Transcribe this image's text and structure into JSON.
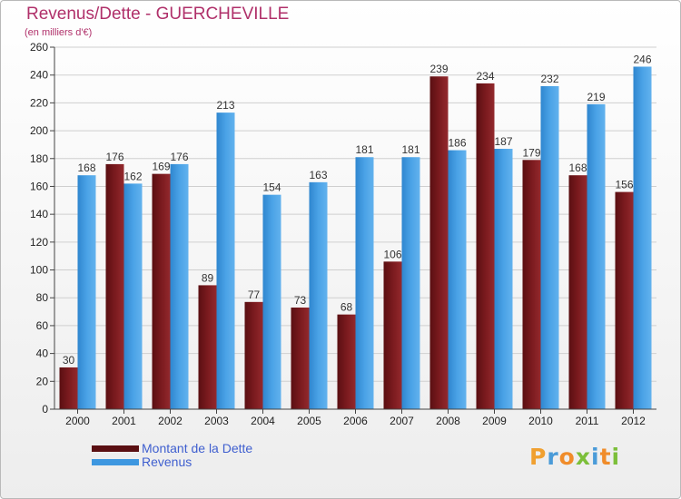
{
  "page": {
    "title": "Revenus/Dette - GUERCHEVILLE",
    "subtitle": "(en milliers d'€)",
    "logo": {
      "text": "Proxiti"
    }
  },
  "colors": {
    "debt": "#8a1e22",
    "revenue": "#4aa0e4",
    "title": "#b0306a",
    "legend_text": "#3f5fcf",
    "grid": "#cfcfcf"
  },
  "legend": [
    {
      "label": "Montant de la Dette",
      "color": "#5a0f12"
    },
    {
      "label": "Revenus",
      "color": "#3d97e0"
    }
  ],
  "chart_data": {
    "type": "bar",
    "title": "Revenus/Dette - GUERCHEVILLE",
    "subtitle": "(en milliers d'€)",
    "xlabel": "",
    "ylabel": "",
    "categories": [
      "2000",
      "2001",
      "2002",
      "2003",
      "2004",
      "2005",
      "2006",
      "2007",
      "2008",
      "2009",
      "2010",
      "2011",
      "2012"
    ],
    "series": [
      {
        "name": "Montant de la Dette",
        "values": [
          30,
          176,
          169,
          89,
          77,
          73,
          68,
          106,
          239,
          234,
          179,
          168,
          156
        ]
      },
      {
        "name": "Revenus",
        "values": [
          168,
          162,
          176,
          213,
          154,
          163,
          181,
          181,
          186,
          187,
          232,
          219,
          246
        ]
      }
    ],
    "ylim": [
      0,
      260
    ],
    "yticks": [
      0,
      20,
      40,
      60,
      80,
      100,
      120,
      140,
      160,
      180,
      200,
      220,
      240,
      260
    ],
    "grid": true,
    "legend_position": "bottom-left"
  }
}
